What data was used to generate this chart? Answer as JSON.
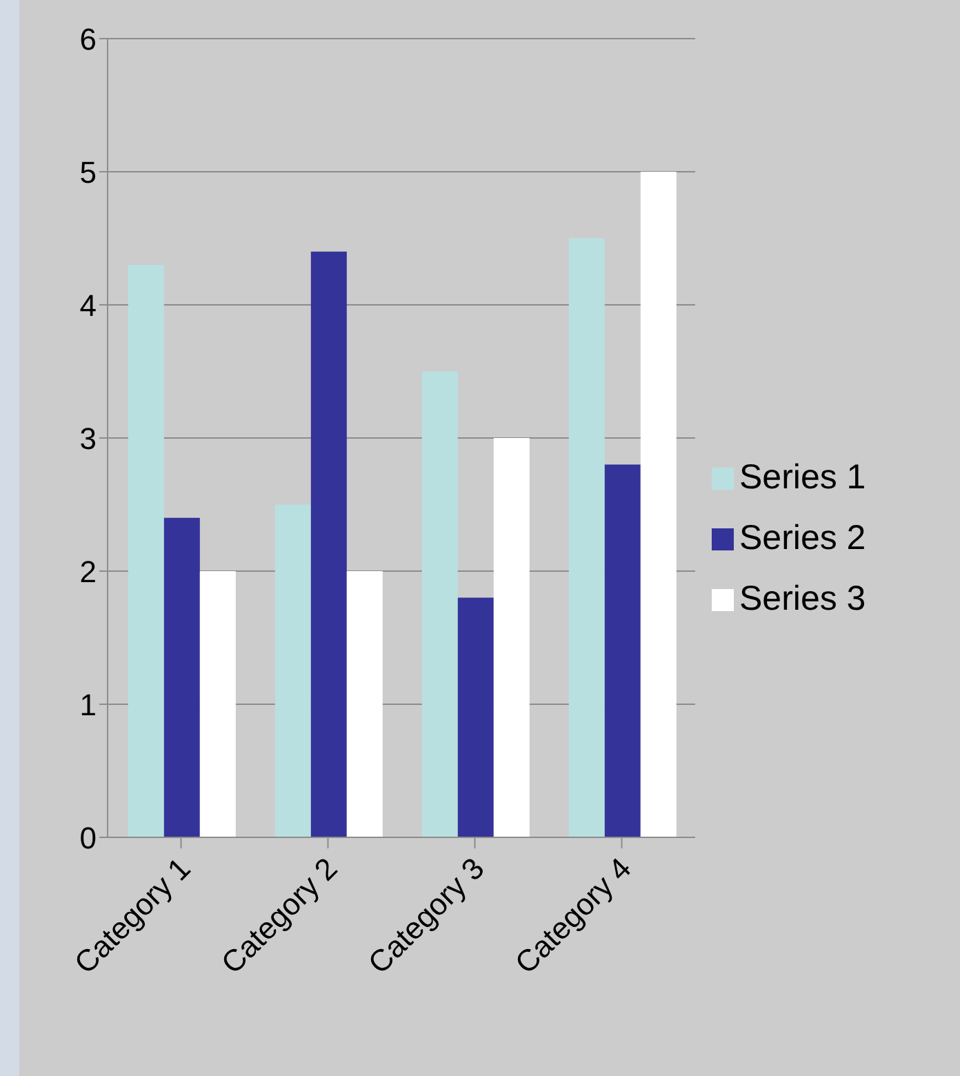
{
  "chart_data": {
    "type": "bar",
    "categories": [
      "Category 1",
      "Category 2",
      "Category 3",
      "Category 4"
    ],
    "series": [
      {
        "name": "Series 1",
        "color": "#b9e0e0",
        "values": [
          4.3,
          2.5,
          3.5,
          4.5
        ]
      },
      {
        "name": "Series 2",
        "color": "#333399",
        "values": [
          2.4,
          4.4,
          1.8,
          2.8
        ]
      },
      {
        "name": "Series 3",
        "color": "#ffffff",
        "values": [
          2,
          2,
          3,
          5
        ]
      }
    ],
    "ylim": [
      0,
      6
    ],
    "yticks": [
      0,
      1,
      2,
      3,
      4,
      5,
      6
    ],
    "grid": "y",
    "legend": "right"
  }
}
